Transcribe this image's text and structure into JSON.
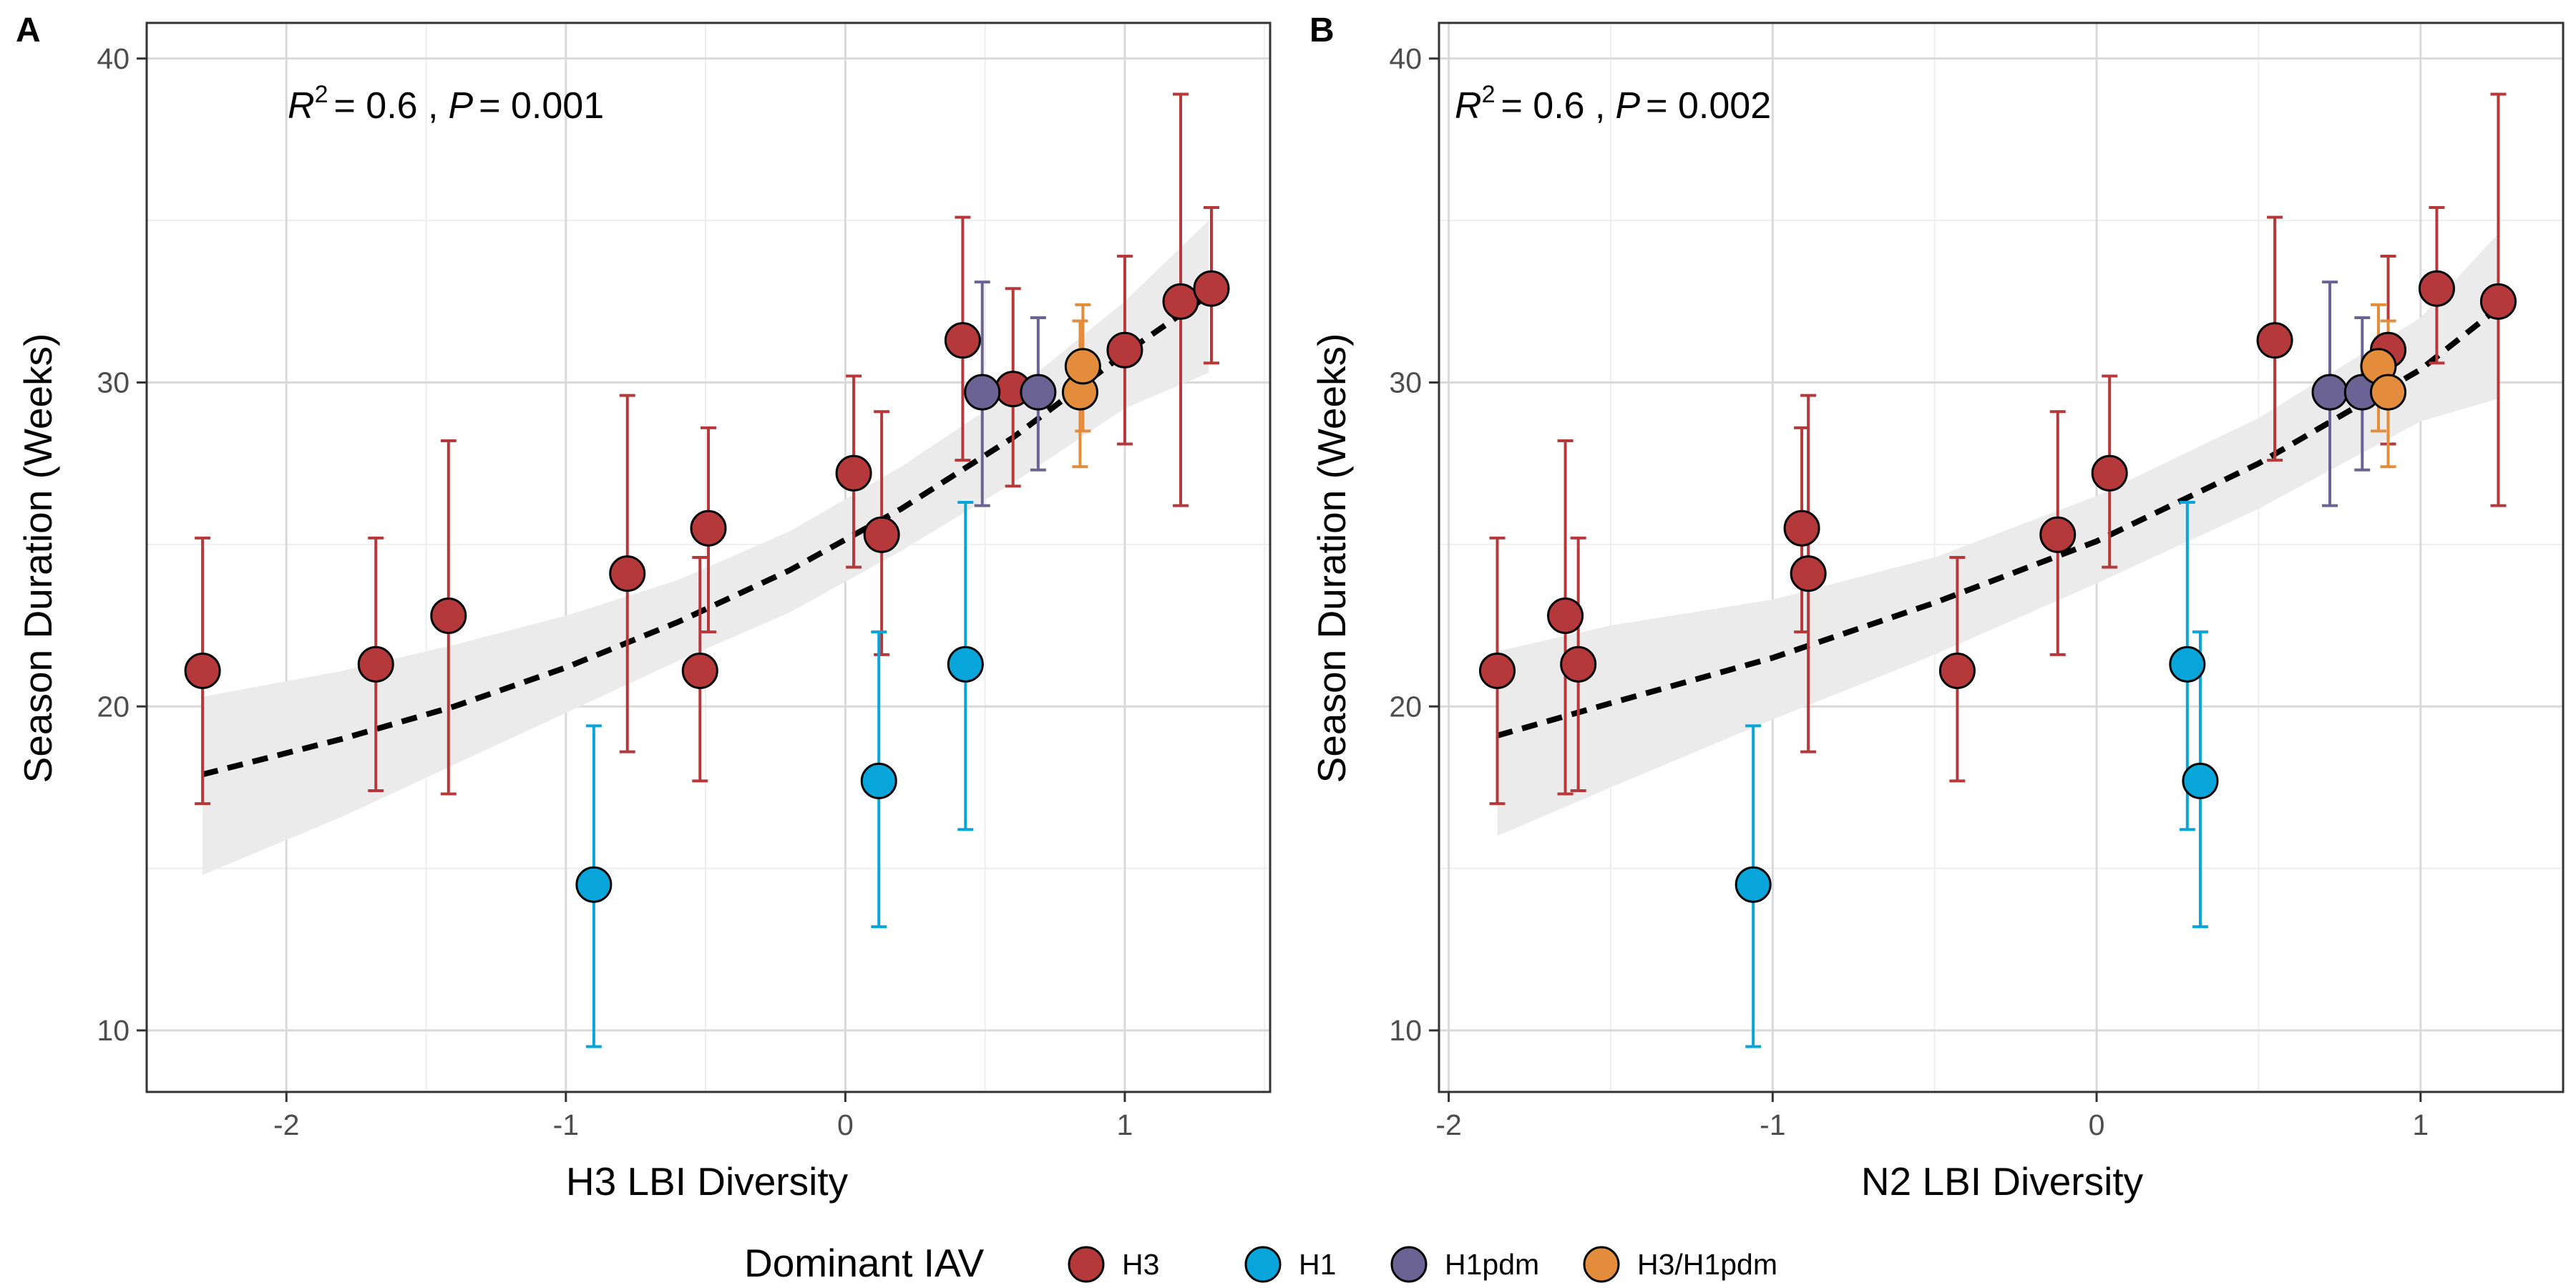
{
  "colors": {
    "H3": "#b5393b",
    "H1": "#08a5da",
    "H1pdm": "#6b6394",
    "H3/H1pdm": "#e38d3c",
    "ribbon": "#ebebeb",
    "grid": "#d9d9d9",
    "fit": "#000000"
  },
  "legend": {
    "title": "Dominant IAV",
    "items": [
      {
        "label": "H3",
        "color": "#b5393b"
      },
      {
        "label": "H1",
        "color": "#08a5da"
      },
      {
        "label": "H1pdm",
        "color": "#6b6394"
      },
      {
        "label": "H3/H1pdm",
        "color": "#e38d3c"
      }
    ]
  },
  "chart_data": [
    {
      "panel": "A",
      "type": "scatter",
      "xlabel": "H3 LBI Diversity",
      "ylabel": "Season Duration (Weeks)",
      "xlim": [
        -2.5,
        1.52
      ],
      "ylim": [
        8.1,
        41.1
      ],
      "xticks": [
        -2,
        -1,
        0,
        1
      ],
      "yticks": [
        10,
        20,
        30,
        40
      ],
      "grid": true,
      "annotation": {
        "r2_label": "R",
        "r2_exp": "2",
        "r2_value": "= 0.6 ,",
        "p_label": "P",
        "p_value": "= 0.001"
      },
      "fit": {
        "x": [
          -2.3,
          -1.8,
          -1.4,
          -1.0,
          -0.6,
          -0.2,
          0.2,
          0.6,
          1.0,
          1.3
        ],
        "y": [
          17.9,
          19.0,
          20.0,
          21.2,
          22.6,
          24.2,
          26.1,
          28.3,
          30.9,
          32.7
        ],
        "lower": [
          14.8,
          16.6,
          18.2,
          19.8,
          21.4,
          22.9,
          24.8,
          26.9,
          29.2,
          30.3
        ],
        "upper": [
          20.3,
          21.1,
          21.9,
          22.8,
          23.9,
          25.4,
          27.4,
          29.7,
          32.5,
          35.0
        ]
      },
      "points": [
        {
          "x": -2.3,
          "y": 21.1,
          "lo": 17.0,
          "hi": 25.2,
          "group": "H3"
        },
        {
          "x": -1.68,
          "y": 21.3,
          "lo": 17.4,
          "hi": 25.2,
          "group": "H3"
        },
        {
          "x": -1.42,
          "y": 22.8,
          "lo": 17.3,
          "hi": 28.2,
          "group": "H3"
        },
        {
          "x": -0.78,
          "y": 24.1,
          "lo": 18.6,
          "hi": 29.6,
          "group": "H3"
        },
        {
          "x": -0.52,
          "y": 21.1,
          "lo": 17.7,
          "hi": 24.6,
          "group": "H3"
        },
        {
          "x": -0.49,
          "y": 25.5,
          "lo": 22.3,
          "hi": 28.6,
          "group": "H3"
        },
        {
          "x": 0.03,
          "y": 27.2,
          "lo": 24.3,
          "hi": 30.2,
          "group": "H3"
        },
        {
          "x": 0.13,
          "y": 25.3,
          "lo": 21.6,
          "hi": 29.1,
          "group": "H3"
        },
        {
          "x": 0.42,
          "y": 31.3,
          "lo": 27.6,
          "hi": 35.1,
          "group": "H3"
        },
        {
          "x": 0.6,
          "y": 29.8,
          "lo": 26.8,
          "hi": 32.9,
          "group": "H3"
        },
        {
          "x": 1.0,
          "y": 31.0,
          "lo": 28.1,
          "hi": 33.9,
          "group": "H3"
        },
        {
          "x": 1.2,
          "y": 32.5,
          "lo": 26.2,
          "hi": 38.9,
          "group": "H3"
        },
        {
          "x": 1.31,
          "y": 32.9,
          "lo": 30.6,
          "hi": 35.4,
          "group": "H3"
        },
        {
          "x": -0.9,
          "y": 14.5,
          "lo": 9.5,
          "hi": 19.4,
          "group": "H1"
        },
        {
          "x": 0.12,
          "y": 17.7,
          "lo": 13.2,
          "hi": 22.3,
          "group": "H1"
        },
        {
          "x": 0.43,
          "y": 21.3,
          "lo": 16.2,
          "hi": 26.3,
          "group": "H1"
        },
        {
          "x": 0.49,
          "y": 29.7,
          "lo": 26.2,
          "hi": 33.1,
          "group": "H1pdm"
        },
        {
          "x": 0.69,
          "y": 29.7,
          "lo": 27.3,
          "hi": 32.0,
          "group": "H1pdm"
        },
        {
          "x": 0.84,
          "y": 29.7,
          "lo": 27.4,
          "hi": 31.9,
          "group": "H3/H1pdm"
        },
        {
          "x": 0.85,
          "y": 30.5,
          "lo": 28.5,
          "hi": 32.4,
          "group": "H3/H1pdm"
        }
      ]
    },
    {
      "panel": "B",
      "type": "scatter",
      "xlabel": "N2 LBI Diversity",
      "ylabel": "Season Duration (Weeks)",
      "xlim": [
        -2.03,
        1.44
      ],
      "ylim": [
        8.1,
        41.1
      ],
      "xticks": [
        -2,
        -1,
        0,
        1
      ],
      "yticks": [
        10,
        20,
        30,
        40
      ],
      "grid": true,
      "annotation": {
        "r2_label": "R",
        "r2_exp": "2",
        "r2_value": "= 0.6 ,",
        "p_label": "P",
        "p_value": "= 0.002"
      },
      "fit": {
        "x": [
          -1.85,
          -1.5,
          -1.0,
          -0.5,
          0.0,
          0.5,
          1.0,
          1.24
        ],
        "y": [
          19.1,
          20.1,
          21.5,
          23.2,
          25.1,
          27.5,
          30.4,
          32.3
        ],
        "lower": [
          16.0,
          17.5,
          19.6,
          21.6,
          23.8,
          26.1,
          28.8,
          29.5
        ],
        "upper": [
          21.7,
          22.5,
          23.3,
          24.6,
          26.5,
          28.9,
          32.0,
          34.6
        ]
      },
      "points": [
        {
          "x": -1.85,
          "y": 21.1,
          "lo": 17.0,
          "hi": 25.2,
          "group": "H3"
        },
        {
          "x": -1.64,
          "y": 22.8,
          "lo": 17.3,
          "hi": 28.2,
          "group": "H3"
        },
        {
          "x": -1.6,
          "y": 21.3,
          "lo": 17.4,
          "hi": 25.2,
          "group": "H3"
        },
        {
          "x": -0.91,
          "y": 25.5,
          "lo": 22.3,
          "hi": 28.6,
          "group": "H3"
        },
        {
          "x": -0.89,
          "y": 24.1,
          "lo": 18.6,
          "hi": 29.6,
          "group": "H3"
        },
        {
          "x": -0.43,
          "y": 21.1,
          "lo": 17.7,
          "hi": 24.6,
          "group": "H3"
        },
        {
          "x": -0.12,
          "y": 25.3,
          "lo": 21.6,
          "hi": 29.1,
          "group": "H3"
        },
        {
          "x": 0.04,
          "y": 27.2,
          "lo": 24.3,
          "hi": 30.2,
          "group": "H3"
        },
        {
          "x": 0.55,
          "y": 31.3,
          "lo": 27.6,
          "hi": 35.1,
          "group": "H3"
        },
        {
          "x": 0.9,
          "y": 31.0,
          "lo": 28.1,
          "hi": 33.9,
          "group": "H3"
        },
        {
          "x": 1.05,
          "y": 32.9,
          "lo": 30.6,
          "hi": 35.4,
          "group": "H3"
        },
        {
          "x": 1.24,
          "y": 32.5,
          "lo": 26.2,
          "hi": 38.9,
          "group": "H3"
        },
        {
          "x": -1.06,
          "y": 14.5,
          "lo": 9.5,
          "hi": 19.4,
          "group": "H1"
        },
        {
          "x": 0.28,
          "y": 21.3,
          "lo": 16.2,
          "hi": 26.3,
          "group": "H1"
        },
        {
          "x": 0.32,
          "y": 17.7,
          "lo": 13.2,
          "hi": 22.3,
          "group": "H1"
        },
        {
          "x": 0.72,
          "y": 29.7,
          "lo": 26.2,
          "hi": 33.1,
          "group": "H1pdm"
        },
        {
          "x": 0.82,
          "y": 29.7,
          "lo": 27.3,
          "hi": 32.0,
          "group": "H1pdm"
        },
        {
          "x": 0.87,
          "y": 30.5,
          "lo": 28.5,
          "hi": 32.4,
          "group": "H3/H1pdm"
        },
        {
          "x": 0.9,
          "y": 29.7,
          "lo": 27.4,
          "hi": 31.9,
          "group": "H3/H1pdm"
        }
      ]
    }
  ]
}
